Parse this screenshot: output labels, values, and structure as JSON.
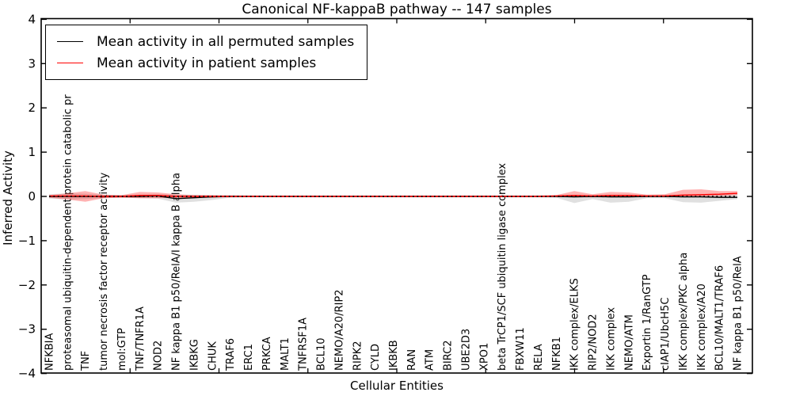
{
  "chart_data": {
    "type": "line",
    "title": "Canonical NF-kappaB pathway -- 147 samples",
    "xlabel": "Cellular Entities",
    "ylabel": "Inferred Activity",
    "ylim": [
      -4,
      4
    ],
    "yticks": [
      -4,
      -3,
      -2,
      -1,
      0,
      1,
      2,
      3,
      4
    ],
    "ytick_labels": [
      "−4",
      "−3",
      "−2",
      "−1",
      "0",
      "1",
      "2",
      "3",
      "4"
    ],
    "grid": false,
    "legend_position": "upper left",
    "legend": [
      "Mean activity in all permuted samples",
      "Mean activity in patient samples"
    ],
    "colors": {
      "permuted_line": "#000000",
      "patient_line": "#ff0000",
      "permuted_band": "#bbbbbb",
      "patient_band": "#ff0000",
      "zero_line": "#000000",
      "frame": "#000000"
    },
    "categories": [
      "NFKBIA",
      "proteasomal ubiquitin-dependent protein catabolic pr",
      "TNF",
      "tumor necrosis factor receptor activity",
      "mol:GTP",
      "TNF/TNFR1A",
      "NOD2",
      "NF kappa B1 p50/RelA/I kappa B alpha",
      "IKBKG",
      "CHUK",
      "TRAF6",
      "ERC1",
      "PRKCA",
      "MALT1",
      "TNFRSF1A",
      "BCL10",
      "NEMO/A20/RIP2",
      "RIPK2",
      "CYLD",
      "IKBKB",
      "RAN",
      "ATM",
      "BIRC2",
      "UBE2D3",
      "XPO1",
      "beta TrCP1/SCF ubiquitin ligase complex",
      "FBXW11",
      "RELA",
      "NFKB1",
      "IKK complex/ELKS",
      "RIP2/NOD2",
      "IKK complex",
      "NEMO/ATM",
      "Exportin 1/RanGTP",
      "cIAP1/UbcH5C",
      "IKK complex/PKC alpha",
      "IKK complex/A20",
      "BCL10/MALT1/TRAF6",
      "NF kappa B1 p50/RelA"
    ],
    "series": [
      {
        "name": "Mean activity in all permuted samples",
        "color": "#000000",
        "values": [
          0,
          0,
          0,
          0,
          0,
          0,
          0.01,
          -0.05,
          -0.03,
          -0.01,
          0,
          0,
          0,
          0,
          0,
          0,
          0,
          0,
          0,
          0,
          0,
          0,
          0,
          0,
          0,
          0,
          0,
          0,
          0,
          -0.01,
          0,
          -0.01,
          -0.01,
          0,
          0,
          -0.01,
          -0.01,
          -0.02,
          -0.02
        ]
      },
      {
        "name": "Mean activity in patient samples",
        "color": "#ff0000",
        "values": [
          0.01,
          0.01,
          0.01,
          0,
          0,
          0.02,
          0.02,
          0,
          0,
          0,
          0,
          0,
          0,
          0,
          0,
          0,
          0,
          0,
          0,
          0,
          0,
          0,
          0,
          0,
          0,
          0,
          0,
          0,
          0.01,
          0.02,
          0.01,
          0.02,
          0.02,
          0.01,
          0.01,
          0.03,
          0.04,
          0.05,
          0.07
        ]
      }
    ],
    "bands": [
      {
        "name": "Permuted samples activity range",
        "color": "#bbbbbb",
        "opacity": 0.45,
        "high": [
          0.05,
          0.07,
          0.06,
          0.04,
          0.03,
          0.04,
          0.05,
          0.04,
          0.04,
          0.03,
          0.03,
          0.02,
          0.02,
          0.02,
          0.02,
          0.02,
          0.02,
          0.02,
          0.02,
          0.02,
          0.02,
          0.02,
          0.02,
          0.02,
          0.02,
          0.02,
          0.02,
          0.02,
          0.03,
          0.03,
          0.03,
          0.04,
          0.04,
          0.03,
          0.03,
          0.04,
          0.04,
          0.04,
          0.05
        ],
        "low": [
          -0.05,
          -0.07,
          -0.06,
          -0.04,
          -0.03,
          -0.04,
          -0.05,
          -0.14,
          -0.12,
          -0.08,
          -0.03,
          -0.02,
          -0.02,
          -0.02,
          -0.02,
          -0.02,
          -0.02,
          -0.02,
          -0.02,
          -0.02,
          -0.02,
          -0.02,
          -0.02,
          -0.02,
          -0.02,
          -0.02,
          -0.02,
          -0.02,
          -0.03,
          -0.15,
          -0.06,
          -0.14,
          -0.12,
          -0.04,
          -0.04,
          -0.13,
          -0.14,
          -0.1,
          -0.06
        ]
      },
      {
        "name": "Patient samples activity range",
        "color": "#ff0000",
        "opacity": 0.3,
        "high": [
          0.03,
          0.07,
          0.12,
          0.04,
          0.03,
          0.1,
          0.09,
          0.05,
          0.03,
          0.03,
          0.02,
          0.02,
          0.02,
          0.02,
          0.02,
          0.02,
          0.02,
          0.02,
          0.02,
          0.02,
          0.02,
          0.02,
          0.02,
          0.02,
          0.02,
          0.02,
          0.02,
          0.02,
          0.03,
          0.12,
          0.05,
          0.1,
          0.09,
          0.04,
          0.05,
          0.15,
          0.16,
          0.12,
          0.12
        ],
        "low": [
          -0.03,
          -0.07,
          -0.12,
          -0.04,
          -0.03,
          -0.04,
          -0.04,
          -0.03,
          -0.03,
          -0.03,
          -0.01,
          -0.01,
          -0.01,
          -0.01,
          -0.01,
          -0.01,
          -0.01,
          -0.01,
          -0.01,
          -0.01,
          -0.01,
          -0.01,
          -0.01,
          -0.01,
          -0.01,
          -0.01,
          -0.01,
          -0.01,
          -0.01,
          -0.02,
          -0.02,
          -0.02,
          -0.02,
          -0.01,
          -0.01,
          -0.01,
          0.0,
          0.01,
          0.03
        ]
      }
    ],
    "zero_line": {
      "value": 0,
      "style": "dotted",
      "color": "#000000"
    }
  }
}
